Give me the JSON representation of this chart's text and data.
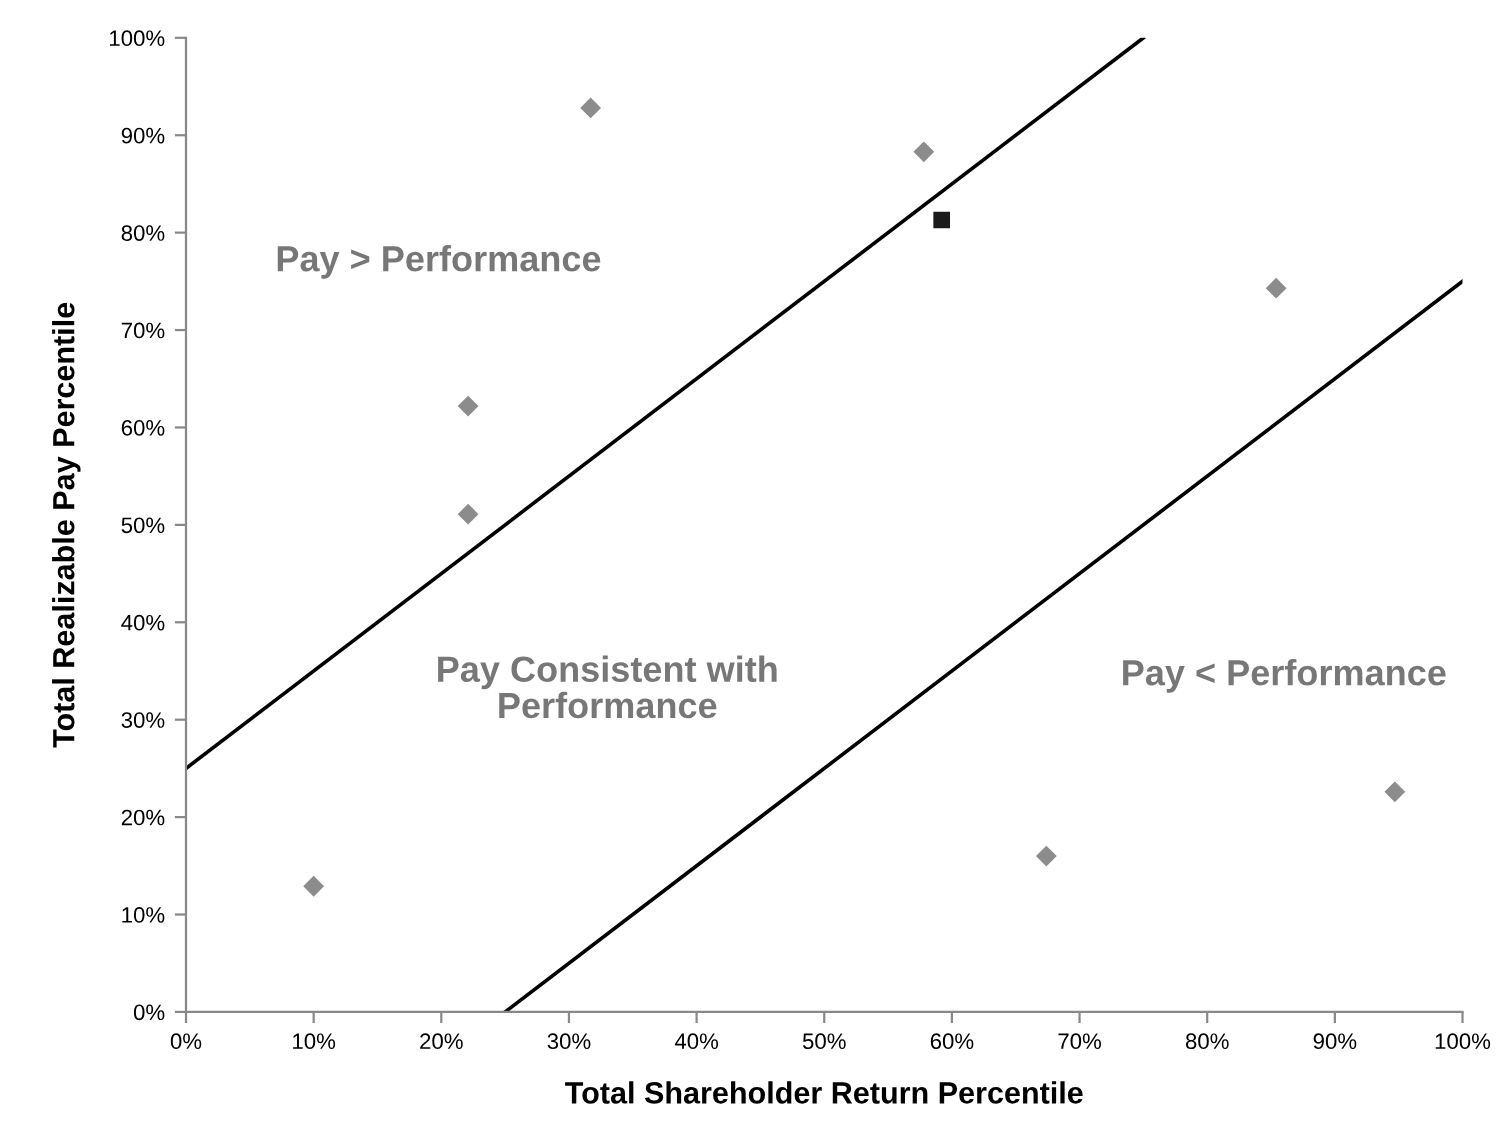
{
  "chart_data": {
    "type": "scatter",
    "xlabel": "Total Shareholder Return Percentile",
    "ylabel": "Total Realizable Pay Percentile",
    "annotations": [
      "Pay > Performance",
      "Pay Consistent with\nPerformance",
      "Pay < Performance"
    ],
    "series": [
      {
        "color": "#8c8c8c",
        "marker": "diamond",
        "x": [
          31.7,
          22.1,
          22.1,
          57.8,
          85.4,
          10.0,
          67.4,
          94.7
        ],
        "values": [
          92.8,
          62.2,
          51.1,
          88.3,
          74.3,
          12.9,
          16.0,
          22.6
        ]
      },
      {
        "color": "#1a1a1a",
        "marker": "square",
        "x": [
          59.2
        ],
        "values": [
          81.3
        ]
      },
      {
        "type": "line",
        "color": "#000000",
        "marker": "none",
        "x": [
          0,
          75
        ],
        "values": [
          25,
          100
        ]
      },
      {
        "type": "line",
        "color": "#000000",
        "marker": "none",
        "x": [
          25,
          100
        ],
        "values": [
          0,
          75
        ]
      }
    ],
    "xlim": [
      0,
      100
    ],
    "ylim": [
      0,
      100
    ],
    "xticks": [
      {
        "value": 0,
        "label": "0%"
      },
      {
        "value": 10,
        "label": "10%"
      },
      {
        "value": 20,
        "label": "20%"
      },
      {
        "value": 30,
        "label": "30%"
      },
      {
        "value": 40,
        "label": "40%"
      },
      {
        "value": 50,
        "label": "50%"
      },
      {
        "value": 60,
        "label": "60%"
      },
      {
        "value": 70,
        "label": "70%"
      },
      {
        "value": 80,
        "label": "80%"
      },
      {
        "value": 90,
        "label": "90%"
      },
      {
        "value": 100,
        "label": "100%"
      }
    ],
    "yticks": [
      {
        "value": 0,
        "label": "0%"
      },
      {
        "value": 10,
        "label": "10%"
      },
      {
        "value": 20,
        "label": "20%"
      },
      {
        "value": 30,
        "label": "30%"
      },
      {
        "value": 40,
        "label": "40%"
      },
      {
        "value": 50,
        "label": "50%"
      },
      {
        "value": 60,
        "label": "60%"
      },
      {
        "value": 70,
        "label": "70%"
      },
      {
        "value": 80,
        "label": "80%"
      },
      {
        "value": 90,
        "label": "90%"
      },
      {
        "value": 100,
        "label": "100%"
      }
    ]
  }
}
